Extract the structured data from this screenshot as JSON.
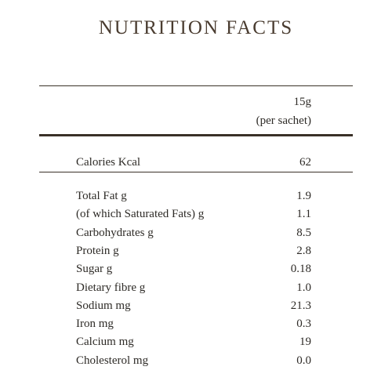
{
  "title": "NUTRITION FACTS",
  "serving": {
    "size": "15g",
    "unit": "(per sachet)"
  },
  "calories": {
    "label": "Calories Kcal",
    "value": "62"
  },
  "rows": [
    [
      "Total Fat g",
      "1.9"
    ],
    [
      "(of which Saturated Fats) g",
      "1.1"
    ],
    [
      "Carbohydrates g",
      "8.5"
    ],
    [
      "Protein g",
      "2.8"
    ],
    [
      "Sugar g",
      "0.18"
    ],
    [
      "Dietary fibre g",
      "1.0"
    ],
    [
      "Sodium mg",
      "21.3"
    ],
    [
      "Iron mg",
      "0.3"
    ],
    [
      "Calcium mg",
      "19"
    ],
    [
      "Cholesterol mg",
      "0.0"
    ]
  ]
}
